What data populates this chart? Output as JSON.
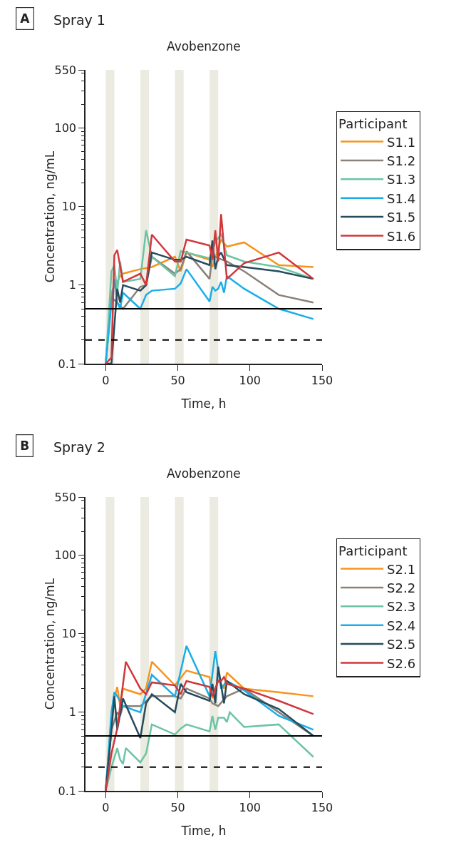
{
  "chart_data": [
    {
      "type": "line",
      "title": "Spray 1",
      "subtitle": "Avobenzone",
      "annotations": [
        "A"
      ],
      "xlabel": "Time, h",
      "ylabel": "Concentration, ng/mL",
      "legend_title": "Participant",
      "legend": "right",
      "log": "y",
      "grid": false,
      "xlim": [
        -14,
        150
      ],
      "xticks": [
        0,
        50,
        100,
        150
      ],
      "ylim": [
        0.1,
        550
      ],
      "yticks": [
        0.1,
        1,
        10,
        100,
        550
      ],
      "ref_lines": [
        {
          "axis": "y",
          "value": 0.5,
          "line_style": "solid",
          "color": "#000000"
        },
        {
          "axis": "y",
          "value": 0.2,
          "line_style": "dashed",
          "color": "#000000"
        }
      ],
      "bands": [
        {
          "axis": "x",
          "from": 0,
          "to": 6,
          "color": "#ecebe1"
        },
        {
          "axis": "x",
          "from": 24,
          "to": 30,
          "color": "#ecebe1"
        },
        {
          "axis": "x",
          "from": 48,
          "to": 54,
          "color": "#ecebe1"
        },
        {
          "axis": "x",
          "from": 72,
          "to": 78,
          "color": "#ecebe1"
        }
      ],
      "series": [
        {
          "name": "S1.1",
          "color": "#f7941d",
          "x": [
            0,
            4,
            6,
            8,
            10,
            12,
            24,
            32,
            48,
            52,
            56,
            72,
            74,
            80,
            84,
            96,
            120,
            144
          ],
          "values": [
            0.1,
            0.8,
            1.0,
            1.1,
            1.3,
            1.4,
            1.6,
            1.7,
            2.3,
            1.5,
            2.6,
            2.1,
            1.7,
            3.8,
            3.1,
            3.5,
            1.8,
            1.7
          ]
        },
        {
          "name": "S1.2",
          "color": "#8a8178",
          "x": [
            0,
            4,
            8,
            12,
            24,
            28,
            32,
            48,
            52,
            56,
            72,
            74,
            78,
            84,
            96,
            120,
            144
          ],
          "values": [
            0.1,
            0.7,
            0.6,
            0.5,
            0.95,
            1.0,
            2.3,
            1.4,
            1.6,
            2.7,
            1.2,
            2.4,
            2.2,
            2.0,
            1.5,
            0.75,
            0.6
          ]
        },
        {
          "name": "S1.3",
          "color": "#6cc4a4",
          "x": [
            0,
            4,
            6,
            8,
            10,
            12,
            24,
            28,
            32,
            48,
            52,
            56,
            72,
            76,
            80,
            84,
            96,
            120,
            144
          ],
          "values": [
            0.1,
            1.5,
            1.8,
            0.8,
            2.0,
            1.1,
            1.2,
            5.0,
            2.3,
            1.3,
            2.7,
            2.6,
            2.2,
            3.5,
            4.5,
            2.4,
            2.0,
            1.7,
            1.2
          ]
        },
        {
          "name": "S1.4",
          "color": "#1aaee8",
          "x": [
            0,
            4,
            6,
            8,
            10,
            12,
            24,
            28,
            32,
            48,
            52,
            56,
            72,
            74,
            76,
            78,
            80,
            82,
            84,
            96,
            120,
            144
          ],
          "values": [
            0.1,
            0.6,
            1.2,
            0.6,
            0.5,
            0.8,
            0.5,
            0.75,
            0.85,
            0.9,
            1.05,
            1.6,
            0.62,
            0.95,
            0.85,
            0.9,
            1.1,
            0.8,
            1.3,
            0.9,
            0.5,
            0.37
          ]
        },
        {
          "name": "S1.5",
          "color": "#264b5d",
          "x": [
            0,
            4,
            8,
            10,
            12,
            24,
            28,
            32,
            48,
            52,
            56,
            72,
            74,
            76,
            78,
            80,
            84,
            96,
            120,
            144
          ],
          "values": [
            0.1,
            0.1,
            0.9,
            0.6,
            1.0,
            0.85,
            1.0,
            2.6,
            2.1,
            2.1,
            2.3,
            1.8,
            3.7,
            1.6,
            2.3,
            2.6,
            1.8,
            1.7,
            1.5,
            1.2
          ]
        },
        {
          "name": "S1.6",
          "color": "#d1373b",
          "x": [
            0,
            4,
            6,
            8,
            12,
            24,
            28,
            32,
            48,
            52,
            56,
            72,
            74,
            76,
            78,
            80,
            84,
            96,
            120,
            144
          ],
          "values": [
            0.1,
            0.12,
            2.4,
            2.8,
            1.1,
            1.4,
            1.0,
            4.4,
            2.0,
            2.0,
            3.8,
            3.2,
            2.1,
            5.0,
            2.0,
            8.0,
            1.2,
            1.9,
            2.6,
            1.2
          ]
        }
      ]
    },
    {
      "type": "line",
      "title": "Spray 2",
      "subtitle": "Avobenzone",
      "annotations": [
        "B"
      ],
      "xlabel": "Time, h",
      "ylabel": "Concentration, ng/mL",
      "legend_title": "Participant",
      "legend": "right",
      "log": "y",
      "grid": false,
      "xlim": [
        -14,
        150
      ],
      "xticks": [
        0,
        50,
        100,
        150
      ],
      "ylim": [
        0.1,
        550
      ],
      "yticks": [
        0.1,
        1,
        10,
        100,
        550
      ],
      "ref_lines": [
        {
          "axis": "y",
          "value": 0.5,
          "line_style": "solid",
          "color": "#000000"
        },
        {
          "axis": "y",
          "value": 0.2,
          "line_style": "dashed",
          "color": "#000000"
        }
      ],
      "bands": [
        {
          "axis": "x",
          "from": 0,
          "to": 6,
          "color": "#ecebe1"
        },
        {
          "axis": "x",
          "from": 24,
          "to": 30,
          "color": "#ecebe1"
        },
        {
          "axis": "x",
          "from": 48,
          "to": 54,
          "color": "#ecebe1"
        },
        {
          "axis": "x",
          "from": 72,
          "to": 78,
          "color": "#ecebe1"
        }
      ],
      "series": [
        {
          "name": "S2.1",
          "color": "#f7941d",
          "x": [
            0,
            4,
            6,
            8,
            10,
            12,
            24,
            28,
            32,
            48,
            56,
            72,
            74,
            78,
            82,
            84,
            96,
            120,
            144
          ],
          "values": [
            0.1,
            0.9,
            1.5,
            2.1,
            1.2,
            2.0,
            1.7,
            2.0,
            4.4,
            2.2,
            3.4,
            2.8,
            1.5,
            2.6,
            2.0,
            3.2,
            2.0,
            1.8,
            1.6
          ]
        },
        {
          "name": "S2.2",
          "color": "#8a8178",
          "x": [
            0,
            4,
            8,
            10,
            12,
            24,
            32,
            48,
            52,
            56,
            72,
            74,
            78,
            84,
            96,
            120,
            144
          ],
          "values": [
            0.1,
            0.6,
            1.0,
            0.9,
            1.2,
            1.2,
            1.6,
            1.6,
            1.5,
            2.0,
            1.5,
            1.3,
            1.2,
            1.6,
            2.0,
            1.0,
            0.5
          ]
        },
        {
          "name": "S2.3",
          "color": "#6cc4a4",
          "x": [
            0,
            4,
            8,
            10,
            12,
            14,
            24,
            28,
            32,
            48,
            52,
            56,
            72,
            74,
            76,
            78,
            82,
            84,
            86,
            96,
            120,
            144
          ],
          "values": [
            0.1,
            0.2,
            0.35,
            0.25,
            0.22,
            0.35,
            0.23,
            0.3,
            0.7,
            0.52,
            0.62,
            0.7,
            0.57,
            0.9,
            0.6,
            0.85,
            0.85,
            0.75,
            1.0,
            0.65,
            0.7,
            0.27
          ]
        },
        {
          "name": "S2.4",
          "color": "#1aaee8",
          "x": [
            0,
            4,
            6,
            8,
            12,
            24,
            32,
            48,
            56,
            72,
            76,
            80,
            84,
            96,
            120,
            144
          ],
          "values": [
            0.1,
            1.0,
            1.8,
            1.6,
            1.2,
            1.0,
            3.0,
            1.6,
            7.0,
            1.6,
            6.0,
            2.0,
            2.5,
            1.9,
            0.9,
            0.6
          ]
        },
        {
          "name": "S2.5",
          "color": "#264b5d",
          "x": [
            0,
            4,
            6,
            8,
            12,
            24,
            28,
            32,
            48,
            52,
            56,
            72,
            74,
            76,
            78,
            82,
            84,
            96,
            120,
            144
          ],
          "values": [
            0.1,
            0.6,
            1.6,
            0.6,
            1.5,
            0.47,
            1.3,
            1.7,
            1.0,
            2.3,
            1.8,
            1.4,
            2.3,
            1.3,
            3.8,
            1.3,
            2.5,
            1.7,
            1.1,
            0.5
          ]
        },
        {
          "name": "S2.6",
          "color": "#d1373b",
          "x": [
            0,
            4,
            8,
            14,
            24,
            28,
            32,
            48,
            52,
            56,
            72,
            74,
            78,
            80,
            82,
            84,
            96,
            120,
            144
          ],
          "values": [
            0.1,
            0.3,
            0.62,
            4.4,
            2.0,
            1.7,
            2.4,
            2.2,
            1.7,
            2.5,
            2.1,
            1.6,
            2.5,
            2.5,
            2.8,
            2.3,
            2.0,
            1.4,
            0.95
          ]
        }
      ]
    }
  ]
}
